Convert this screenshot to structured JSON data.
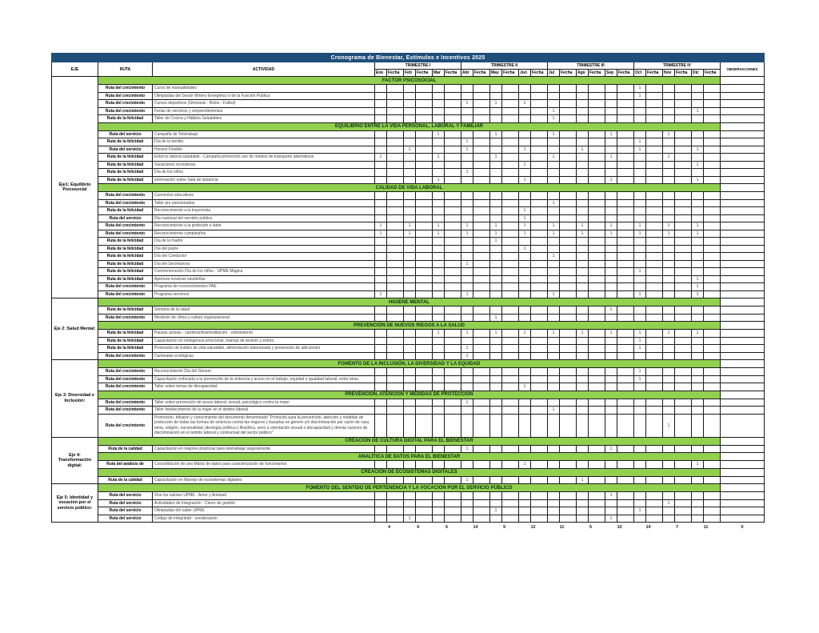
{
  "title": "Cronograma de Bienestar, Estímulos e Incentivos 2025",
  "headers": {
    "eje": "EJE",
    "ruta": "RUTA",
    "actividad": "ACTIVIDAD",
    "observaciones": "OBSERVACIONES",
    "trimestres": [
      "TRIMESTRE I",
      "TRIMESTRE II",
      "TRIMESTRE III",
      "TRIMESTRE IV"
    ],
    "meses": [
      "Ene",
      "Feb",
      "Mar",
      "Abr",
      "May",
      "Jun",
      "Jul",
      "Ago",
      "Sep",
      "Oct",
      "Nov",
      "Dic"
    ],
    "fecha_label": "Fecha"
  },
  "colors": {
    "header_blue": "#1F4E79",
    "band_green": "#92D050"
  },
  "mark_symbol": "1",
  "ejes": [
    {
      "label": "Eje1: Equilibrio Psicosocial",
      "sections": [
        {
          "title": "FACTOR PSICOSOCIAL",
          "rows": [
            {
              "ruta": "Ruta del crecimiento",
              "actividad": "Curso de manualidades",
              "meses": [
                9
              ]
            },
            {
              "ruta": "Ruta del crecimiento",
              "actividad": "Olimpiadas del Sector Minero Energético ó de la Función Pública",
              "meses": [
                9
              ]
            },
            {
              "ruta": "Ruta del crecimiento",
              "actividad": "Cursos deportivos (Gimnasio - Bolos - Futbol)",
              "meses": [
                3,
                4,
                5
              ]
            },
            {
              "ruta": "Ruta del crecimiento",
              "actividad": "Ferias de servicios y emprendimientos",
              "meses": [
                6,
                11
              ]
            },
            {
              "ruta": "Ruta de la felicidad",
              "actividad": "Taller de Cocina y Hábitos Saludables",
              "meses": [
                6
              ]
            }
          ]
        },
        {
          "title": "EQUILIBRIO ENTRE LA VIDA PERSONAL, LABORAL Y FAMILIAR",
          "rows": [
            {
              "ruta": "Ruta del servicio",
              "actividad": "Campaña de Teletrabajo",
              "meses": [
                2,
                4,
                6,
                8,
                10
              ]
            },
            {
              "ruta": "Ruta de la felicidad",
              "actividad": "Día de la familia",
              "meses": [
                3,
                9
              ]
            },
            {
              "ruta": "Ruta del servicio",
              "actividad": "Horario Flexible",
              "meses": [
                1,
                3,
                5,
                7,
                9,
                11
              ]
            },
            {
              "ruta": "Ruta de la felicidad",
              "actividad": "Entorno laboral saludable - Campaña promoción uso de medios de transporte alternativos",
              "meses": [
                0,
                2,
                4,
                6,
                8,
                10
              ]
            },
            {
              "ruta": "Ruta de la felicidad",
              "actividad": "Vacaciones recreativas",
              "meses": [
                5,
                11
              ]
            },
            {
              "ruta": "Ruta de la felicidad",
              "actividad": "Día de los niños",
              "meses": [
                3
              ]
            },
            {
              "ruta": "Ruta de la felicidad",
              "actividad": "Información sobre Sala de lactancia",
              "meses": [
                2,
                5,
                8,
                11
              ]
            }
          ]
        },
        {
          "title": "CALIDAD DE VIDA LABORAL",
          "rows": [
            {
              "ruta": "Ruta del crecimiento",
              "actividad": "Convenios educativos",
              "meses": []
            },
            {
              "ruta": "Ruta del crecimiento",
              "actividad": "Taller pre pensionados",
              "meses": [
                6
              ]
            },
            {
              "ruta": "Ruta de la felicidad",
              "actividad": "Reconocimiento a la trayectoria",
              "meses": [
                5
              ]
            },
            {
              "ruta": "Ruta del servicio",
              "actividad": "Día nacional del servidor público",
              "meses": [
                5
              ]
            },
            {
              "ruta": "Ruta del crecimiento",
              "actividad": "Reconocimiento a la profesión o labor",
              "meses": [
                0,
                1,
                2,
                3,
                4,
                5,
                6,
                7,
                8,
                9,
                10,
                11
              ]
            },
            {
              "ruta": "Ruta del crecimiento",
              "actividad": "Reconocimiento cumpleaños",
              "meses": [
                0,
                1,
                2,
                3,
                4,
                5,
                6,
                7,
                8,
                9,
                10,
                11
              ]
            },
            {
              "ruta": "Ruta de la felicidad",
              "actividad": "Día de la madre",
              "meses": [
                4
              ]
            },
            {
              "ruta": "Ruta de la felicidad",
              "actividad": "Día del padre",
              "meses": [
                5
              ]
            },
            {
              "ruta": "Ruta de la felicidad",
              "actividad": "Día del Conductor",
              "meses": [
                6
              ]
            },
            {
              "ruta": "Ruta de la felicidad",
              "actividad": "Día del Secretario/a",
              "meses": [
                3
              ]
            },
            {
              "ruta": "Ruta de la felicidad",
              "actividad": "Conmemoración Día de los niños - UPME Mágica",
              "meses": [
                9
              ]
            },
            {
              "ruta": "Ruta de la felicidad",
              "actividad": "Apertura novenas navideñas",
              "meses": [
                11
              ]
            },
            {
              "ruta": "Ruta del crecimiento",
              "actividad": "Programa de reconocimientos PAE",
              "meses": [
                11
              ]
            },
            {
              "ruta": "Ruta del crecimiento",
              "actividad": "Programa servimos",
              "meses": [
                0,
                3,
                6,
                9,
                11
              ]
            }
          ]
        }
      ]
    },
    {
      "label": "Eje 2: Salud Mental:",
      "sections": [
        {
          "title": "HIGIENE MENTAL",
          "rows": [
            {
              "ruta": "Ruta de la felicidad",
              "actividad": "Semana de la salud",
              "meses": [
                8
              ]
            },
            {
              "ruta": "Ruta del crecimiento",
              "actividad": "Medición de clima y cultura organizacional",
              "meses": [
                4
              ]
            }
          ]
        },
        {
          "title": "PREVENCIÓN DE NUEVOS RIEGOS A LA SALUD",
          "rows": [
            {
              "ruta": "Ruta de la felicidad",
              "actividad": "Pausas activas - cardiorumba/meditación - estiramiento",
              "meses": [
                2,
                3,
                4,
                5,
                6,
                7,
                8,
                9,
                10,
                11
              ]
            },
            {
              "ruta": "Ruta de la felicidad",
              "actividad": "Capacitación en inteligencia emocional, manejo de tensión y estrés.",
              "meses": [
                9
              ]
            },
            {
              "ruta": "Ruta de la felicidad",
              "actividad": "Promoción de Estilos de vida saludable, alimentación balanceada y prevención de adicciones",
              "meses": [
                3,
                9
              ]
            },
            {
              "ruta": "Ruta del crecimiento",
              "actividad": "Caminatas ecológicas",
              "meses": [
                3
              ]
            }
          ]
        }
      ]
    },
    {
      "label": "Eje 3: Diversidad e Inclusión:",
      "sections": [
        {
          "title": "FOMENTO DE LA INCLUSIÓN, LA DIVERSIDAD Y LA EQUIDAD",
          "rows": [
            {
              "ruta": "Ruta del crecimiento",
              "actividad": "Reconocimiento Día del Género",
              "meses": [
                9
              ]
            },
            {
              "ruta": "Ruta del crecimiento",
              "actividad": "Capacitación enfocada a la prevención de la violencia y acoso en el trabajo, equidad e igualdad laboral, entre otras.",
              "meses": [
                9
              ]
            },
            {
              "ruta": "Ruta del crecimiento",
              "actividad": "Taller sobre temas de discapacidad",
              "meses": [
                5
              ]
            }
          ]
        },
        {
          "title": "PREVENCIÓN, ATENCIÓN Y MEDIDAS DE PROTECCIÓN",
          "rows": [
            {
              "ruta": "Ruta del crecimiento",
              "actividad": "Taller sobre prevención de acoso laboral, sexual, psicológico contra la mujer",
              "meses": [
                3
              ]
            },
            {
              "ruta": "Ruta del crecimiento",
              "actividad": "Taller fortalecimiento de la mujer en el ámbito laboral",
              "meses": [
                6
              ]
            },
            {
              "ruta": "Ruta del crecimiento",
              "actividad": "Promoción, difusión y conocimiento del documento denominado \"Protocolo para la prevención, atención y medidas de protección de todas las formas de violencia contra las mujeres y basadas en género y/o discriminación por razón de raza, etnia, religión, nacionalidad, ideología política o filosófica, sexo u orientación sexual o discapacidad y demás razones de discriminación en el ámbito laboral y contractual del sector público\"",
              "meses": [
                10
              ]
            }
          ]
        }
      ]
    },
    {
      "label": "Eje 4: Transformación digital:",
      "sections": [
        {
          "title": "CREACIÓN DE CULTURA DIGITAL PARA EL BIENESTAR",
          "rows": [
            {
              "ruta": "Ruta de la calidad",
              "actividad": "Capacitación en mejores prácticas para teletrabajar seguramente.",
              "meses": [
                3,
                8
              ]
            }
          ]
        },
        {
          "title": "ANALÍTICA DE DATOS PARA EL BIENESTAR",
          "rows": [
            {
              "ruta": "Ruta del análisis de",
              "actividad": "Consolidación de una Matriz de datos para caracterización de funcionarios",
              "meses": [
                5,
                11
              ]
            }
          ]
        },
        {
          "title": "CREACIÓN DE ECOSISTEMAS DIGITALES",
          "rows": [
            {
              "ruta": "Ruta de la calidad",
              "actividad": "Capacitación en Manejo de ecosistemas digitales",
              "meses": [
                3,
                7
              ]
            }
          ]
        }
      ]
    },
    {
      "label": "Eje 5: Identidad y vocación por el servicio público:",
      "sections": [
        {
          "title": "FOMENTO DEL SENTIDO DE PERTENENCIA Y LA VOCACION POR EL SERVICIO PÚBLICO",
          "rows": [
            {
              "ruta": "Ruta del servicio",
              "actividad": "Vive los valores UPME - Amor y Amistad",
              "meses": [
                8
              ]
            },
            {
              "ruta": "Ruta del servicio",
              "actividad": "Actividades de Integración - Cierre de gestión",
              "meses": [
                10
              ]
            },
            {
              "ruta": "Ruta del servicio",
              "actividad": "Olimpiadas del saber UPME",
              "meses": [
                4,
                9
              ]
            },
            {
              "ruta": "Ruta del servicio",
              "actividad": "Código de integridad - socialización",
              "meses": [
                1,
                8
              ]
            }
          ]
        }
      ]
    }
  ],
  "totales": {
    "por_mes": [
      "4",
      "4",
      "6",
      "14",
      "9",
      "12",
      "11",
      "5",
      "10",
      "14",
      "7",
      "11"
    ],
    "final": "0"
  }
}
